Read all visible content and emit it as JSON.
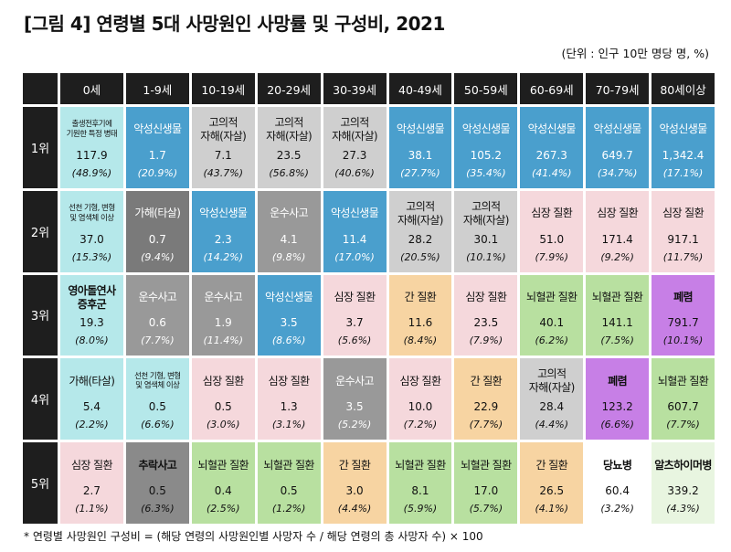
{
  "title": "[그림 4] 연령별 5대 사망원인 사망률 및 구성비, 2021",
  "unit": "(단위 : 인구 10만 명당 명, %)",
  "footnote": "* 연령별 사망원인 구성비 = (해당 연령의 사망원인별 사망자 수 / 해당 연령의 총 사망자 수) × 100",
  "colors": {
    "header": "#1e1e1e",
    "cancer": "#4a9fcd",
    "suicide": "#cfcfcf",
    "birth_cond": "#b5e8ea",
    "heart": "#f5d8dc",
    "transport": "#999999",
    "homicide": "#7a7a7a",
    "liver": "#f7d4a2",
    "cerebro": "#b8e0a0",
    "pneumonia": "#c77fe6",
    "fall": "#8a8a8a",
    "diabetes": "#ffffff",
    "alzheimer": "#e8f5e0"
  },
  "ages": [
    "0세",
    "1-9세",
    "10-19세",
    "20-29세",
    "30-39세",
    "40-49세",
    "50-59세",
    "60-69세",
    "70-79세",
    "80세이상"
  ],
  "ranks": [
    {
      "label": "1위",
      "cells": [
        {
          "cause": "출생전후기에\n기원한 특정 병태",
          "value": "117.9",
          "pct": "(48.9%)",
          "color": "#b5e8ea",
          "small": true
        },
        {
          "cause": "악성신생물",
          "value": "1.7",
          "pct": "(20.9%)",
          "color": "#4a9fcd",
          "dark": true
        },
        {
          "cause": "고의적\n자해(자살)",
          "value": "7.1",
          "pct": "(43.7%)",
          "color": "#cfcfcf"
        },
        {
          "cause": "고의적\n자해(자살)",
          "value": "23.5",
          "pct": "(56.8%)",
          "color": "#cfcfcf"
        },
        {
          "cause": "고의적\n자해(자살)",
          "value": "27.3",
          "pct": "(40.6%)",
          "color": "#cfcfcf"
        },
        {
          "cause": "악성신생물",
          "value": "38.1",
          "pct": "(27.7%)",
          "color": "#4a9fcd",
          "dark": true
        },
        {
          "cause": "악성신생물",
          "value": "105.2",
          "pct": "(35.4%)",
          "color": "#4a9fcd",
          "dark": true
        },
        {
          "cause": "악성신생물",
          "value": "267.3",
          "pct": "(41.4%)",
          "color": "#4a9fcd",
          "dark": true
        },
        {
          "cause": "악성신생물",
          "value": "649.7",
          "pct": "(34.7%)",
          "color": "#4a9fcd",
          "dark": true
        },
        {
          "cause": "악성신생물",
          "value": "1,342.4",
          "pct": "(17.1%)",
          "color": "#4a9fcd",
          "dark": true
        }
      ]
    },
    {
      "label": "2위",
      "cells": [
        {
          "cause": "선천 기형, 변형\n및 염색체 이상",
          "value": "37.0",
          "pct": "(15.3%)",
          "color": "#b5e8ea",
          "small": true
        },
        {
          "cause": "가해(타살)",
          "value": "0.7",
          "pct": "(9.4%)",
          "color": "#7a7a7a",
          "dark": true
        },
        {
          "cause": "악성신생물",
          "value": "2.3",
          "pct": "(14.2%)",
          "color": "#4a9fcd",
          "dark": true
        },
        {
          "cause": "운수사고",
          "value": "4.1",
          "pct": "(9.8%)",
          "color": "#999999",
          "dark": true
        },
        {
          "cause": "악성신생물",
          "value": "11.4",
          "pct": "(17.0%)",
          "color": "#4a9fcd",
          "dark": true
        },
        {
          "cause": "고의적\n자해(자살)",
          "value": "28.2",
          "pct": "(20.5%)",
          "color": "#cfcfcf"
        },
        {
          "cause": "고의적\n자해(자살)",
          "value": "30.1",
          "pct": "(10.1%)",
          "color": "#cfcfcf"
        },
        {
          "cause": "심장 질환",
          "value": "51.0",
          "pct": "(7.9%)",
          "color": "#f5d8dc"
        },
        {
          "cause": "심장 질환",
          "value": "171.4",
          "pct": "(9.2%)",
          "color": "#f5d8dc"
        },
        {
          "cause": "심장 질환",
          "value": "917.1",
          "pct": "(11.7%)",
          "color": "#f5d8dc"
        }
      ]
    },
    {
      "label": "3위",
      "cells": [
        {
          "cause": "영아돌연사\n증후군",
          "value": "19.3",
          "pct": "(8.0%)",
          "color": "#b5e8ea",
          "bold": true
        },
        {
          "cause": "운수사고",
          "value": "0.6",
          "pct": "(7.7%)",
          "color": "#999999",
          "dark": true
        },
        {
          "cause": "운수사고",
          "value": "1.9",
          "pct": "(11.4%)",
          "color": "#999999",
          "dark": true
        },
        {
          "cause": "악성신생물",
          "value": "3.5",
          "pct": "(8.6%)",
          "color": "#4a9fcd",
          "dark": true
        },
        {
          "cause": "심장 질환",
          "value": "3.7",
          "pct": "(5.6%)",
          "color": "#f5d8dc"
        },
        {
          "cause": "간 질환",
          "value": "11.6",
          "pct": "(8.4%)",
          "color": "#f7d4a2"
        },
        {
          "cause": "심장 질환",
          "value": "23.5",
          "pct": "(7.9%)",
          "color": "#f5d8dc"
        },
        {
          "cause": "뇌혈관 질환",
          "value": "40.1",
          "pct": "(6.2%)",
          "color": "#b8e0a0"
        },
        {
          "cause": "뇌혈관 질환",
          "value": "141.1",
          "pct": "(7.5%)",
          "color": "#b8e0a0"
        },
        {
          "cause": "폐렴",
          "value": "791.7",
          "pct": "(10.1%)",
          "color": "#c77fe6",
          "bold": true
        }
      ]
    },
    {
      "label": "4위",
      "cells": [
        {
          "cause": "가해(타살)",
          "value": "5.4",
          "pct": "(2.2%)",
          "color": "#b5e8ea"
        },
        {
          "cause": "선천 기형, 변형\n및 염색체 이상",
          "value": "0.5",
          "pct": "(6.6%)",
          "color": "#b5e8ea",
          "small": true
        },
        {
          "cause": "심장 질환",
          "value": "0.5",
          "pct": "(3.0%)",
          "color": "#f5d8dc"
        },
        {
          "cause": "심장 질환",
          "value": "1.3",
          "pct": "(3.1%)",
          "color": "#f5d8dc"
        },
        {
          "cause": "운수사고",
          "value": "3.5",
          "pct": "(5.2%)",
          "color": "#999999",
          "dark": true
        },
        {
          "cause": "심장 질환",
          "value": "10.0",
          "pct": "(7.2%)",
          "color": "#f5d8dc"
        },
        {
          "cause": "간 질환",
          "value": "22.9",
          "pct": "(7.7%)",
          "color": "#f7d4a2"
        },
        {
          "cause": "고의적\n자해(자살)",
          "value": "28.4",
          "pct": "(4.4%)",
          "color": "#cfcfcf"
        },
        {
          "cause": "폐렴",
          "value": "123.2",
          "pct": "(6.6%)",
          "color": "#c77fe6",
          "bold": true
        },
        {
          "cause": "뇌혈관 질환",
          "value": "607.7",
          "pct": "(7.7%)",
          "color": "#b8e0a0"
        }
      ]
    },
    {
      "label": "5위",
      "cells": [
        {
          "cause": "심장 질환",
          "value": "2.7",
          "pct": "(1.1%)",
          "color": "#f5d8dc"
        },
        {
          "cause": "추락사고",
          "value": "0.5",
          "pct": "(6.3%)",
          "color": "#8a8a8a",
          "bold": true
        },
        {
          "cause": "뇌혈관 질환",
          "value": "0.4",
          "pct": "(2.5%)",
          "color": "#b8e0a0"
        },
        {
          "cause": "뇌혈관 질환",
          "value": "0.5",
          "pct": "(1.2%)",
          "color": "#b8e0a0"
        },
        {
          "cause": "간 질환",
          "value": "3.0",
          "pct": "(4.4%)",
          "color": "#f7d4a2"
        },
        {
          "cause": "뇌혈관 질환",
          "value": "8.1",
          "pct": "(5.9%)",
          "color": "#b8e0a0"
        },
        {
          "cause": "뇌혈관 질환",
          "value": "17.0",
          "pct": "(5.7%)",
          "color": "#b8e0a0"
        },
        {
          "cause": "간 질환",
          "value": "26.5",
          "pct": "(4.1%)",
          "color": "#f7d4a2"
        },
        {
          "cause": "당뇨병",
          "value": "60.4",
          "pct": "(3.2%)",
          "color": "#ffffff",
          "bold": true
        },
        {
          "cause": "알츠하이머병",
          "value": "339.2",
          "pct": "(4.3%)",
          "color": "#e8f5e0",
          "bold": true
        }
      ]
    }
  ]
}
